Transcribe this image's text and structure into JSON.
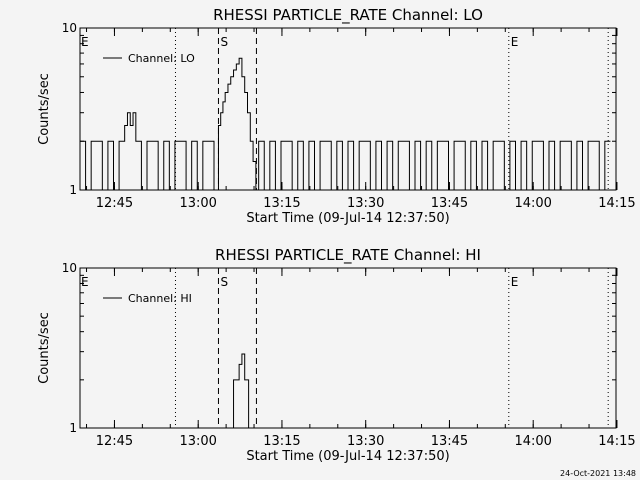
{
  "footer_timestamp": "24-Oct-2021 13:48",
  "chart_data": [
    {
      "type": "line",
      "title": "RHESSI PARTICLE_RATE Channel: LO",
      "xlabel": "Start Time (09-Jul-14 12:37:50)",
      "ylabel": "Counts/sec",
      "y_scale": "log",
      "ylim": [
        1,
        10
      ],
      "y_ticks": [
        {
          "v": 1,
          "label": "1"
        },
        {
          "v": 10,
          "label": "10"
        }
      ],
      "x_range_min": [
        1.0,
        97.0
      ],
      "x_ticks": [
        {
          "v": 7.17,
          "label": "12:45"
        },
        {
          "v": 22.17,
          "label": "13:00"
        },
        {
          "v": 37.17,
          "label": "13:15"
        },
        {
          "v": 52.17,
          "label": "13:30"
        },
        {
          "v": 67.17,
          "label": "13:45"
        },
        {
          "v": 82.17,
          "label": "14:00"
        },
        {
          "v": 97.17,
          "label": "14:15"
        }
      ],
      "vlines": [
        {
          "v": 18.1,
          "style": "dotted",
          "label": ""
        },
        {
          "v": 25.8,
          "style": "dashed",
          "label": "S"
        },
        {
          "v": 32.6,
          "style": "dashed",
          "label": ""
        },
        {
          "v": 77.8,
          "style": "dotted",
          "label": "E"
        },
        {
          "v": 95.6,
          "style": "dotted",
          "label": ""
        }
      ],
      "left_marker": "E",
      "legend": "Channel: LO",
      "series": [
        {
          "name": "Channel: LO",
          "x": [
            1,
            2,
            3,
            4,
            5,
            6,
            7,
            8,
            8.5,
            9,
            9.5,
            10,
            10.5,
            11,
            12,
            13,
            14,
            15,
            16,
            17,
            18,
            19,
            20,
            21,
            22,
            23,
            24,
            25,
            25.8,
            26.2,
            26.6,
            27,
            27.5,
            28,
            28.5,
            29,
            29.5,
            30,
            30.5,
            31,
            31.5,
            32,
            32.5,
            33,
            34,
            35,
            36,
            37,
            38,
            39,
            40,
            41,
            42,
            43,
            44,
            45,
            46,
            47,
            48,
            49,
            50,
            51,
            52,
            53,
            54,
            55,
            56,
            57,
            58,
            59,
            60,
            61,
            62,
            63,
            64,
            65,
            66,
            67,
            68,
            69,
            70,
            71,
            72,
            73,
            74,
            75,
            76,
            77,
            78,
            79,
            80,
            81,
            82,
            83,
            84,
            85,
            86,
            87,
            88,
            89,
            90,
            91,
            92,
            93,
            94,
            95,
            96
          ],
          "y": [
            2,
            1,
            2,
            2,
            1,
            2,
            1,
            2,
            2,
            2.5,
            3,
            2.5,
            3,
            2,
            1,
            2,
            2,
            1,
            2,
            1,
            2,
            2,
            1,
            2,
            1,
            2,
            2,
            1,
            2.5,
            3,
            3.5,
            4,
            4.5,
            5,
            5.5,
            6,
            6.5,
            5,
            4,
            3,
            2,
            1.5,
            1,
            2,
            1,
            2,
            1,
            2,
            2,
            1,
            2,
            1,
            2,
            1,
            2,
            2,
            1,
            2,
            1,
            2,
            1,
            2,
            2,
            1,
            2,
            1,
            2,
            1,
            2,
            2,
            1,
            2,
            1,
            2,
            1,
            2,
            2,
            1,
            2,
            2,
            1,
            2,
            1,
            2,
            1,
            2,
            2,
            1,
            2,
            1,
            2,
            1,
            2,
            2,
            1,
            2,
            1,
            2,
            2,
            1,
            2,
            1,
            2,
            2,
            1,
            2,
            2
          ]
        }
      ]
    },
    {
      "type": "line",
      "title": "RHESSI PARTICLE_RATE Channel: HI",
      "xlabel": "Start Time (09-Jul-14 12:37:50)",
      "ylabel": "Counts/sec",
      "y_scale": "log",
      "ylim": [
        1,
        10
      ],
      "y_ticks": [
        {
          "v": 1,
          "label": "1"
        },
        {
          "v": 10,
          "label": "10"
        }
      ],
      "x_range_min": [
        1.0,
        97.0
      ],
      "x_ticks": [
        {
          "v": 7.17,
          "label": "12:45"
        },
        {
          "v": 22.17,
          "label": "13:00"
        },
        {
          "v": 37.17,
          "label": "13:15"
        },
        {
          "v": 52.17,
          "label": "13:30"
        },
        {
          "v": 67.17,
          "label": "13:45"
        },
        {
          "v": 82.17,
          "label": "14:00"
        },
        {
          "v": 97.17,
          "label": "14:15"
        }
      ],
      "vlines": [
        {
          "v": 18.1,
          "style": "dotted",
          "label": ""
        },
        {
          "v": 25.8,
          "style": "dashed",
          "label": "S"
        },
        {
          "v": 32.6,
          "style": "dashed",
          "label": ""
        },
        {
          "v": 77.8,
          "style": "dotted",
          "label": "E"
        },
        {
          "v": 95.6,
          "style": "dotted",
          "label": ""
        }
      ],
      "left_marker": "E",
      "legend": "Channel: HI",
      "series": [
        {
          "name": "Channel: HI",
          "x": [
            28.0,
            28.5,
            29.0,
            29.5,
            30.0,
            30.5,
            31.0,
            31.2
          ],
          "y": [
            1.0,
            2.0,
            2.0,
            2.5,
            2.9,
            2.0,
            2.0,
            1.0
          ]
        }
      ]
    }
  ]
}
